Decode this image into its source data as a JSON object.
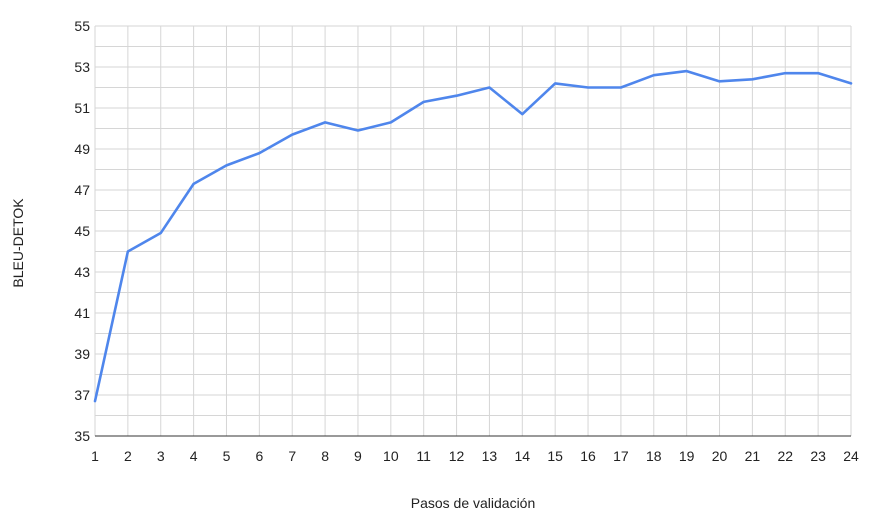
{
  "chart_data": {
    "type": "line",
    "xlabel": "Pasos de validación",
    "ylabel": "BLEU-DETOK",
    "xlim": [
      1,
      24
    ],
    "ylim": [
      35,
      55
    ],
    "x": [
      1,
      2,
      3,
      4,
      5,
      6,
      7,
      8,
      9,
      10,
      11,
      12,
      13,
      14,
      15,
      16,
      17,
      18,
      19,
      20,
      21,
      22,
      23,
      24
    ],
    "y_ticks": [
      35,
      37,
      39,
      41,
      43,
      45,
      47,
      49,
      51,
      53,
      55
    ],
    "y_minor_step": 1,
    "grid": true,
    "legend": "none",
    "series": [
      {
        "color": "#4f86ec",
        "values": [
          36.7,
          44.0,
          44.9,
          47.3,
          48.2,
          48.8,
          49.7,
          50.3,
          49.9,
          50.3,
          51.3,
          51.6,
          52.0,
          50.7,
          52.2,
          52.0,
          52.0,
          52.6,
          52.8,
          52.3,
          52.4,
          52.7,
          52.7,
          52.2
        ]
      }
    ]
  }
}
